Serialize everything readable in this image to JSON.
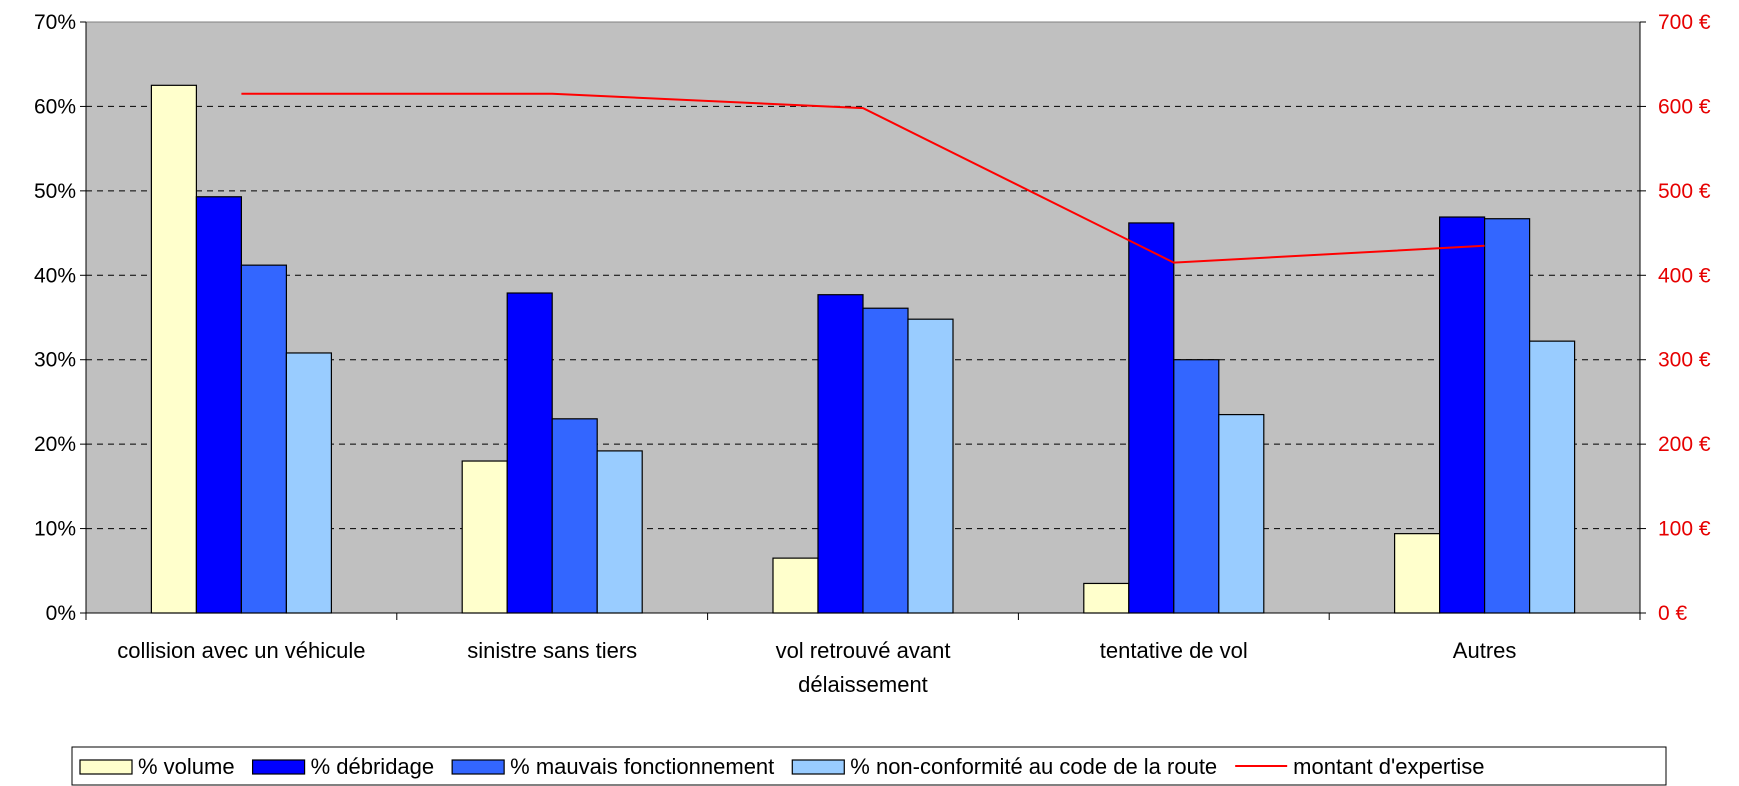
{
  "chart_data": {
    "type": "bar",
    "categories": [
      [
        "collision avec un véhicule"
      ],
      [
        "sinistre sans tiers"
      ],
      [
        "vol retrouvé avant",
        "délaissement"
      ],
      [
        "tentative de vol"
      ],
      [
        "Autres"
      ]
    ],
    "series": [
      {
        "name": "% volume",
        "type": "bar",
        "axis": "left",
        "color": "#ffffcc",
        "values": [
          0.625,
          0.18,
          0.065,
          0.035,
          0.094
        ]
      },
      {
        "name": "% débridage",
        "type": "bar",
        "axis": "left",
        "color": "#0000ff",
        "values": [
          0.493,
          0.379,
          0.377,
          0.462,
          0.469
        ]
      },
      {
        "name": "% mauvais fonctionnement",
        "type": "bar",
        "axis": "left",
        "color": "#3366ff",
        "values": [
          0.412,
          0.23,
          0.361,
          0.3,
          0.467
        ]
      },
      {
        "name": "% non-conformité au code de la route",
        "type": "bar",
        "axis": "left",
        "color": "#99ccff",
        "values": [
          0.308,
          0.192,
          0.348,
          0.235,
          0.322
        ]
      },
      {
        "name": "montant d'expertise",
        "type": "line",
        "axis": "right",
        "color": "#ff0000",
        "values": [
          615,
          615,
          598,
          415,
          435
        ]
      }
    ],
    "y_left": {
      "min": 0,
      "max": 0.7,
      "step": 0.1,
      "ticks": [
        "0%",
        "10%",
        "20%",
        "30%",
        "40%",
        "50%",
        "60%",
        "70%"
      ]
    },
    "y_right": {
      "min": 0,
      "max": 700,
      "step": 100,
      "ticks": [
        "0 €",
        "100 €",
        "200 €",
        "300 €",
        "400 €",
        "500 €",
        "600 €",
        "700 €"
      ]
    },
    "grid": true,
    "legend_position": "bottom",
    "plot_background": "#c0c0c0"
  }
}
